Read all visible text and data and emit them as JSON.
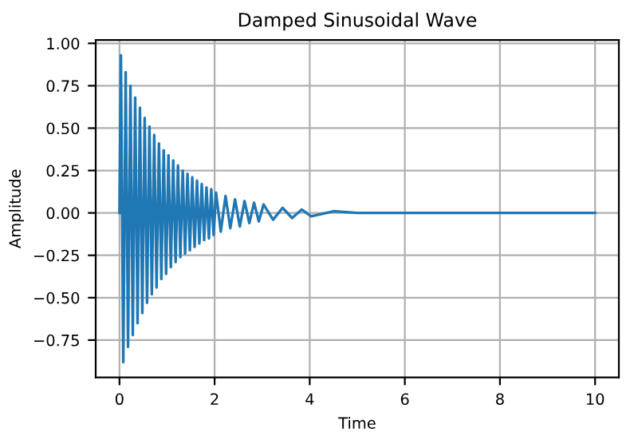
{
  "chart_data": {
    "type": "line",
    "title": "Damped Sinusoidal Wave",
    "xlabel": "Time",
    "ylabel": "Amplitude",
    "x": [
      0,
      0.03,
      0.08,
      0.13,
      0.18,
      0.23,
      0.28,
      0.33,
      0.38,
      0.43,
      0.48,
      0.53,
      0.58,
      0.63,
      0.68,
      0.73,
      0.78,
      0.83,
      0.88,
      0.93,
      0.98,
      1.03,
      1.08,
      1.13,
      1.18,
      1.23,
      1.28,
      1.33,
      1.38,
      1.43,
      1.48,
      1.53,
      1.58,
      1.63,
      1.68,
      1.73,
      1.78,
      1.83,
      1.88,
      1.93,
      1.98,
      2.03,
      2.13,
      2.23,
      2.33,
      2.43,
      2.53,
      2.63,
      2.73,
      2.83,
      2.93,
      3.03,
      3.23,
      3.43,
      3.63,
      3.83,
      4.03,
      4.5,
      5,
      10
    ],
    "series": [
      {
        "color": "#1f77b4",
        "values": [
          0,
          0.93,
          -0.88,
          0.83,
          -0.79,
          0.75,
          -0.72,
          0.68,
          -0.65,
          0.62,
          -0.59,
          0.56,
          -0.53,
          0.51,
          -0.48,
          0.46,
          -0.44,
          0.41,
          -0.39,
          0.37,
          -0.36,
          0.34,
          -0.32,
          0.31,
          -0.29,
          0.28,
          -0.26,
          0.25,
          -0.24,
          0.23,
          -0.22,
          0.21,
          -0.2,
          0.19,
          -0.18,
          0.17,
          -0.16,
          0.15,
          -0.15,
          0.14,
          -0.13,
          0.12,
          -0.11,
          0.1,
          -0.09,
          0.08,
          -0.08,
          0.07,
          -0.06,
          0.06,
          -0.05,
          0.05,
          -0.04,
          0.03,
          -0.03,
          0.02,
          -0.02,
          0.01,
          0,
          0
        ]
      }
    ],
    "xlim": [
      -0.5,
      10.5
    ],
    "ylim": [
      -0.97,
      1.02
    ],
    "xticks": [
      0,
      2,
      4,
      6,
      8,
      10
    ],
    "yticks": [
      {
        "value": -0.75,
        "label": "−0.75"
      },
      {
        "value": -0.5,
        "label": "−0.50"
      },
      {
        "value": -0.25,
        "label": "−0.25"
      },
      {
        "value": 0,
        "label": "0.00"
      },
      {
        "value": 0.25,
        "label": "0.25"
      },
      {
        "value": 0.5,
        "label": "0.50"
      },
      {
        "value": 0.75,
        "label": "0.75"
      },
      {
        "value": 1,
        "label": "1.00"
      }
    ],
    "grid": true,
    "marker": "none",
    "line_style": "solid"
  }
}
